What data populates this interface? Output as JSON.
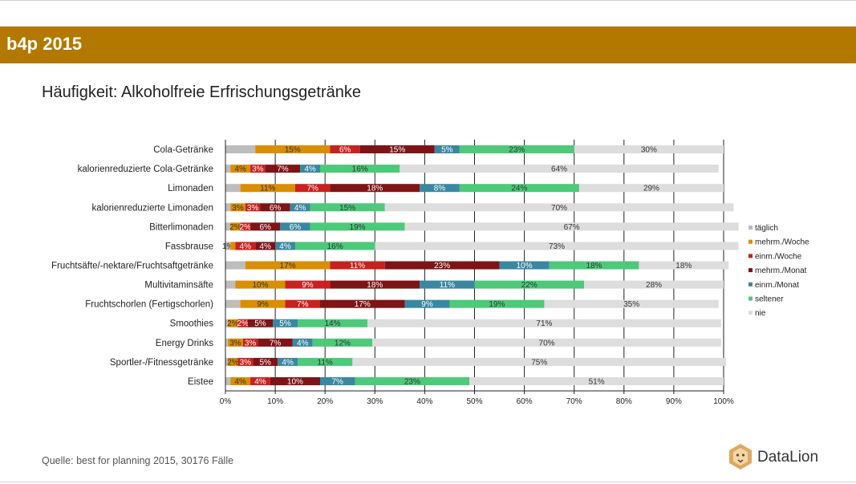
{
  "header": {
    "title": "b4p 2015"
  },
  "chart_title": "Häufigkeit: Alkoholfreie Erfrischungsgetränke",
  "source": "Quelle: best for planning 2015, 30176 Fälle",
  "logo": {
    "text": "DataLion",
    "icon": "lion-icon"
  },
  "chart_data": {
    "type": "bar",
    "orientation": "horizontal",
    "stacked": true,
    "percent_stacked": true,
    "xlim": [
      0,
      100
    ],
    "x_ticks": [
      "0%",
      "10%",
      "20%",
      "30%",
      "40%",
      "50%",
      "60%",
      "70%",
      "80%",
      "90%",
      "100%"
    ],
    "grid": true,
    "legend_position": "right",
    "categories": [
      "Cola-Getränke",
      "kalorienreduzierte Cola-Getränke",
      "Limonaden",
      "kalorienreduzierte Limonaden",
      "Bitterlimonaden",
      "Fassbrause",
      "Fruchtsäfte/-nektare/Fruchtsaftgetränke",
      "Multivitaminsäfte",
      "Fruchtschorlen (Fertigschorlen)",
      "Smoothies",
      "Energy Drinks",
      "Sportler-/Fitnessgetränke",
      "Eistee"
    ],
    "series": [
      {
        "name": "täglich",
        "color": "#bdbdbd",
        "label_color": "#333333",
        "values": [
          6,
          1,
          3,
          1,
          1,
          1,
          4,
          2,
          3,
          0.5,
          0.5,
          0.5,
          1
        ],
        "labels": [
          "",
          "",
          "",
          "",
          "",
          "1%",
          "",
          "",
          "",
          "",
          "",
          "",
          ""
        ]
      },
      {
        "name": "mehrm./Woche",
        "color": "#d98e04",
        "label_color": "#333333",
        "values": [
          15,
          4,
          11,
          3,
          2,
          1,
          17,
          10,
          9,
          2,
          3,
          2,
          4
        ],
        "labels": [
          "15%",
          "4%",
          "11%",
          "3%",
          "2%",
          "",
          "17%",
          "10%",
          "9%",
          "2%",
          "3%",
          "2%",
          "4%"
        ]
      },
      {
        "name": "einm./Woche",
        "color": "#c9211e",
        "label_color": "#ffffff",
        "values": [
          6,
          3,
          7,
          3,
          2,
          4,
          11,
          9,
          7,
          2,
          3,
          3,
          4
        ],
        "labels": [
          "6%",
          "3%",
          "7%",
          "3%",
          "2%",
          "4%",
          "11%",
          "9%",
          "7%",
          "2%",
          "3%",
          "3%",
          "4%"
        ]
      },
      {
        "name": "mehrm./Monat",
        "color": "#7e1416",
        "label_color": "#ffffff",
        "values": [
          15,
          7,
          18,
          6,
          6,
          4,
          23,
          18,
          17,
          5,
          7,
          5,
          10
        ],
        "labels": [
          "15%",
          "7%",
          "18%",
          "6%",
          "6%",
          "4%",
          "23%",
          "18%",
          "17%",
          "5%",
          "7%",
          "5%",
          "10%"
        ]
      },
      {
        "name": "einm./Monat",
        "color": "#3a87a1",
        "label_color": "#ffffff",
        "values": [
          5,
          4,
          8,
          4,
          6,
          4,
          10,
          11,
          9,
          5,
          4,
          4,
          7
        ],
        "labels": [
          "5%",
          "4%",
          "8%",
          "4%",
          "6%",
          "4%",
          "10%",
          "11%",
          "9%",
          "5%",
          "4%",
          "4%",
          "7%"
        ]
      },
      {
        "name": "seltener",
        "color": "#4dc97a",
        "label_color": "#333333",
        "values": [
          23,
          16,
          24,
          15,
          19,
          16,
          18,
          22,
          19,
          14,
          12,
          11,
          23
        ],
        "labels": [
          "23%",
          "16%",
          "24%",
          "15%",
          "19%",
          "16%",
          "18%",
          "22%",
          "19%",
          "14%",
          "12%",
          "11%",
          "23%"
        ]
      },
      {
        "name": "nie",
        "color": "#dddddd",
        "label_color": "#333333",
        "values": [
          30,
          64,
          29,
          70,
          67,
          73,
          18,
          28,
          35,
          71,
          70,
          75,
          51
        ],
        "labels": [
          "30%",
          "64%",
          "29%",
          "70%",
          "67%",
          "73%",
          "18%",
          "28%",
          "35%",
          "71%",
          "70%",
          "75%",
          "51%"
        ]
      }
    ]
  }
}
